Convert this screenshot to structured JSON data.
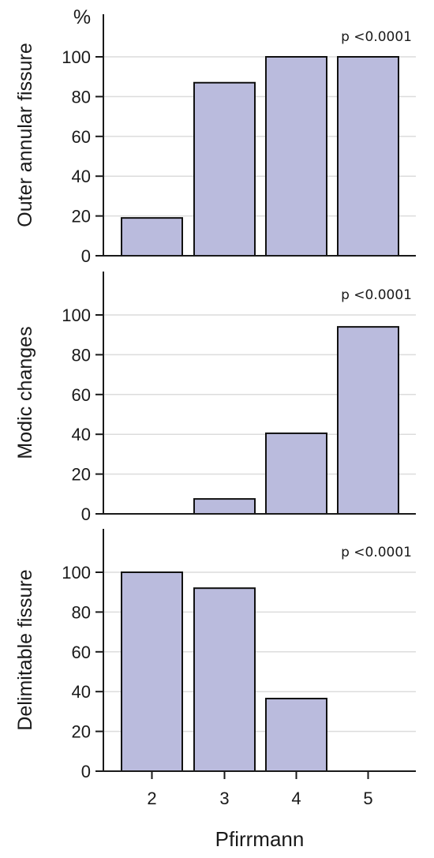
{
  "chart_data": [
    {
      "type": "bar",
      "categories": [
        "2",
        "3",
        "4",
        "5"
      ],
      "values": [
        19,
        87,
        100,
        100
      ],
      "ylabel": "Outer annular fissure",
      "unit": "%",
      "annotation": "p <0.0001",
      "ylim": [
        0,
        100
      ],
      "yticks": [
        "0",
        "20",
        "40",
        "60",
        "80",
        "100"
      ],
      "grid": true
    },
    {
      "type": "bar",
      "categories": [
        "2",
        "3",
        "4",
        "5"
      ],
      "values": [
        0,
        7.5,
        40.5,
        94
      ],
      "ylabel": "Modic changes",
      "annotation": "p <0.0001",
      "ylim": [
        0,
        100
      ],
      "yticks": [
        "0",
        "20",
        "40",
        "60",
        "80",
        "100"
      ],
      "grid": true
    },
    {
      "type": "bar",
      "categories": [
        "2",
        "3",
        "4",
        "5"
      ],
      "values": [
        100,
        92,
        36.5,
        0
      ],
      "ylabel": "Delimitable fissure",
      "annotation": "p <0.0001",
      "ylim": [
        0,
        100
      ],
      "yticks": [
        "0",
        "20",
        "40",
        "60",
        "80",
        "100"
      ],
      "grid": true
    }
  ],
  "xlabel": "Pfirrmann",
  "colors": {
    "bar_fill": "#babbdd",
    "bar_stroke": "#111111",
    "grid": "#dcdcdc"
  }
}
